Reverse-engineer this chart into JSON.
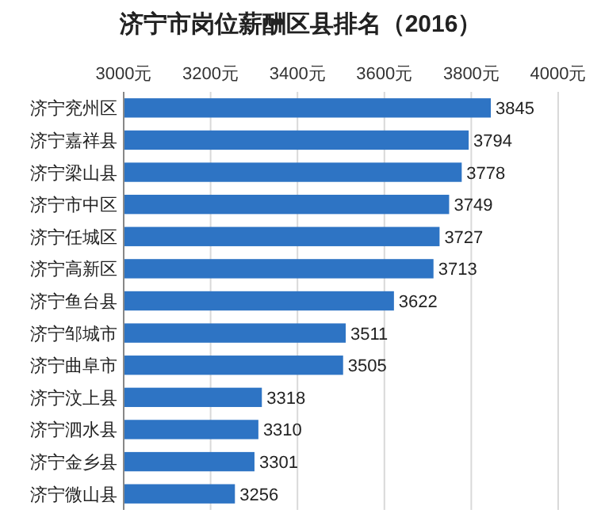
{
  "chart_data": {
    "type": "bar",
    "orientation": "horizontal",
    "title": "济宁市岗位薪酬区县排名（2016）",
    "categories": [
      "济宁兖州区",
      "济宁嘉祥县",
      "济宁梁山县",
      "济宁市中区",
      "济宁任城区",
      "济宁高新区",
      "济宁鱼台县",
      "济宁邹城市",
      "济宁曲阜市",
      "济宁汶上县",
      "济宁泗水县",
      "济宁金乡县",
      "济宁微山县"
    ],
    "values": [
      3845,
      3794,
      3778,
      3749,
      3727,
      3713,
      3622,
      3511,
      3505,
      3318,
      3310,
      3301,
      3256
    ],
    "color": "#2e74c4",
    "xlim": [
      3000,
      4000
    ],
    "xticks": [
      {
        "value": 3000,
        "label": "3000元"
      },
      {
        "value": 3200,
        "label": "3200元"
      },
      {
        "value": 3400,
        "label": "3400元"
      },
      {
        "value": 3600,
        "label": "3600元"
      },
      {
        "value": 3800,
        "label": "3800元"
      },
      {
        "value": 4000,
        "label": "4000元"
      }
    ],
    "grid": true,
    "data_labels": true
  }
}
